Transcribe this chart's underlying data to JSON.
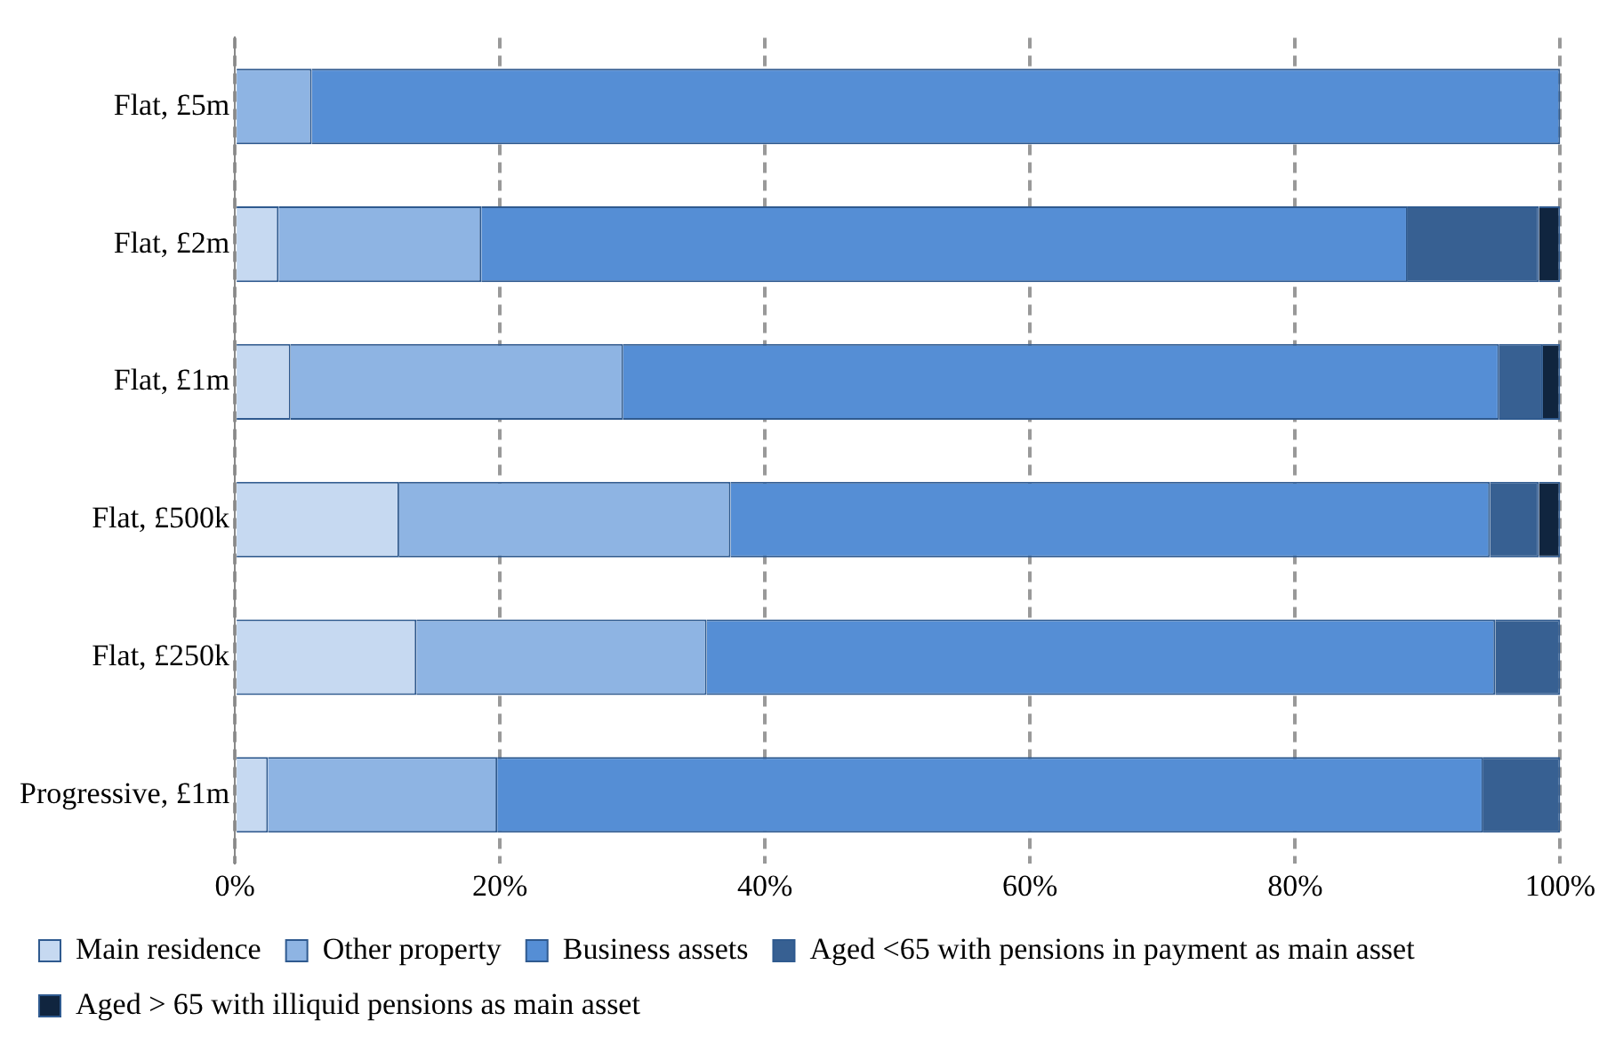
{
  "chart_data": {
    "type": "bar",
    "orientation": "horizontal",
    "stacked": true,
    "categories": [
      "Flat, £5m",
      "Flat, £2m",
      "Flat, £1m",
      "Flat, £500k",
      "Flat, £250k",
      "Progressive, £1m"
    ],
    "series": [
      {
        "name": "Main residence",
        "color": "#c6d9f1",
        "values": [
          0,
          3.3,
          4.2,
          12.4,
          13.7,
          2.5
        ]
      },
      {
        "name": "Other property",
        "color": "#8eb4e3",
        "values": [
          5.8,
          15.3,
          25.1,
          25.0,
          21.9,
          17.3
        ]
      },
      {
        "name": "Business assets",
        "color": "#558ed5",
        "values": [
          94.2,
          69.9,
          66.1,
          57.3,
          59.5,
          74.4
        ]
      },
      {
        "name": "Aged <65 with pensions in payment as main asset",
        "color": "#376092",
        "values": [
          0,
          9.9,
          3.3,
          3.7,
          4.9,
          5.8
        ]
      },
      {
        "name": "Aged > 65 with illiquid pensions as main asset",
        "color": "#10253f",
        "values": [
          0,
          1.6,
          1.3,
          1.6,
          0,
          0
        ]
      }
    ],
    "xlim": [
      0,
      100
    ],
    "xticks": [
      {
        "value": 0,
        "label": "0%"
      },
      {
        "value": 20,
        "label": "20%"
      },
      {
        "value": 40,
        "label": "40%"
      },
      {
        "value": 60,
        "label": "60%"
      },
      {
        "value": 80,
        "label": "80%"
      },
      {
        "value": 100,
        "label": "100%"
      }
    ],
    "grid": "x",
    "legend": "bottom"
  }
}
